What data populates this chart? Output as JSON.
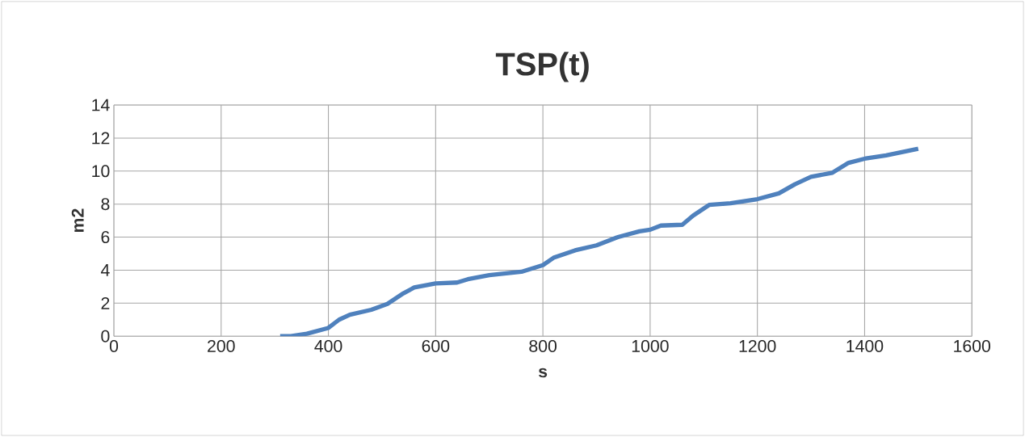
{
  "chart_data": {
    "type": "line",
    "title": "TSP(t)",
    "xlabel": "s",
    "ylabel": "m2",
    "x": [
      310,
      330,
      360,
      400,
      420,
      440,
      480,
      510,
      540,
      560,
      600,
      640,
      660,
      700,
      760,
      800,
      820,
      860,
      900,
      940,
      980,
      1000,
      1020,
      1060,
      1080,
      1110,
      1150,
      1200,
      1240,
      1270,
      1300,
      1340,
      1370,
      1400,
      1440,
      1500
    ],
    "series": [
      {
        "color": "#4f81bd",
        "values": [
          0,
          0,
          0.15,
          0.5,
          1.0,
          1.3,
          1.6,
          1.95,
          2.6,
          2.95,
          3.2,
          3.25,
          3.45,
          3.7,
          3.9,
          4.3,
          4.75,
          5.2,
          5.5,
          6.0,
          6.35,
          6.45,
          6.7,
          6.75,
          7.3,
          7.95,
          8.05,
          8.3,
          8.65,
          9.2,
          9.65,
          9.9,
          10.5,
          10.75,
          10.95,
          11.35
        ]
      }
    ],
    "xlim": [
      0,
      1600
    ],
    "xticks": [
      0,
      200,
      400,
      600,
      800,
      1000,
      1200,
      1400,
      1600
    ],
    "ylim": [
      0,
      14
    ],
    "yticks": [
      0,
      2,
      4,
      6,
      8,
      10,
      12,
      14
    ],
    "grid": true,
    "marker": "none",
    "line_style": "solid"
  }
}
